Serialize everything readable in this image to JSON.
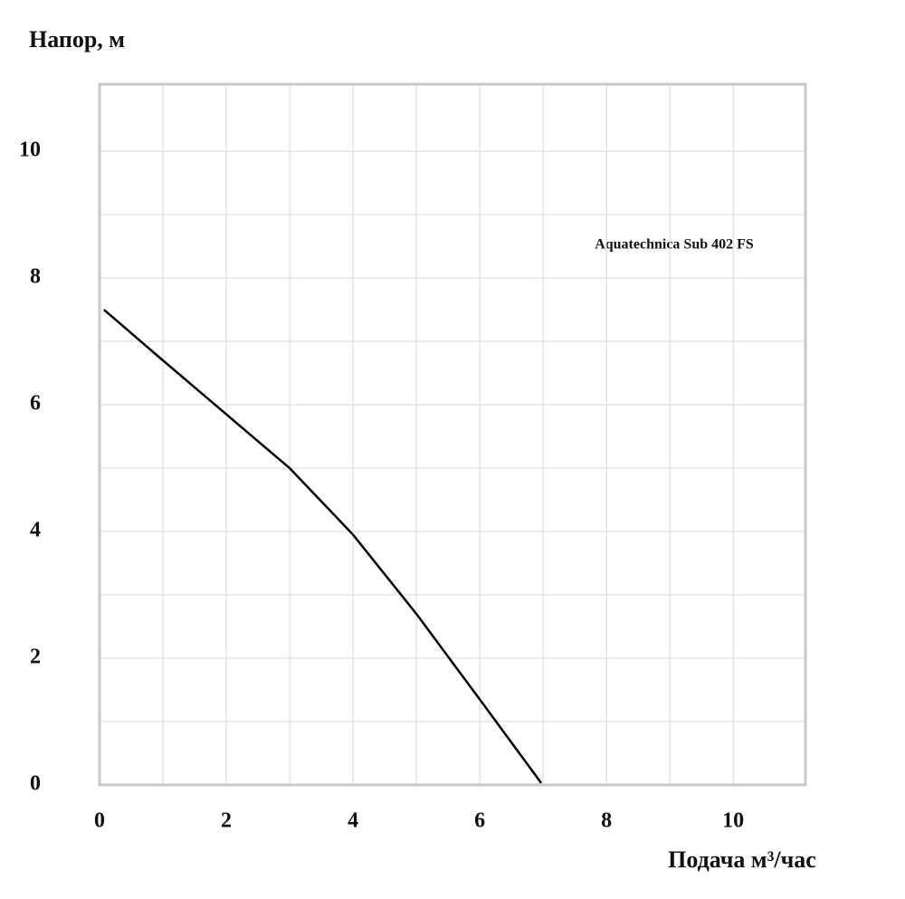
{
  "chart_data": {
    "type": "line",
    "y_label": "Напор, м",
    "x_label": "Подача  м³/час",
    "annotation": "Aquatechnica Sub 402 FS",
    "xlim": [
      0,
      11.14
    ],
    "ylim": [
      0,
      11.06
    ],
    "xticks": [
      0,
      2,
      4,
      6,
      8,
      10
    ],
    "yticks": [
      0,
      2,
      4,
      6,
      8,
      10
    ],
    "xminor": [
      1,
      3,
      5,
      7,
      9
    ],
    "yminor": [
      1,
      3,
      5,
      7,
      9
    ],
    "grid": true,
    "x": [
      0.07,
      1,
      2,
      3,
      4,
      5,
      6,
      6.97
    ],
    "series": [
      {
        "color": "#000000",
        "values": [
          7.5,
          6.7,
          5.85,
          5.0,
          3.95,
          2.7,
          1.35,
          0.03
        ]
      }
    ]
  }
}
